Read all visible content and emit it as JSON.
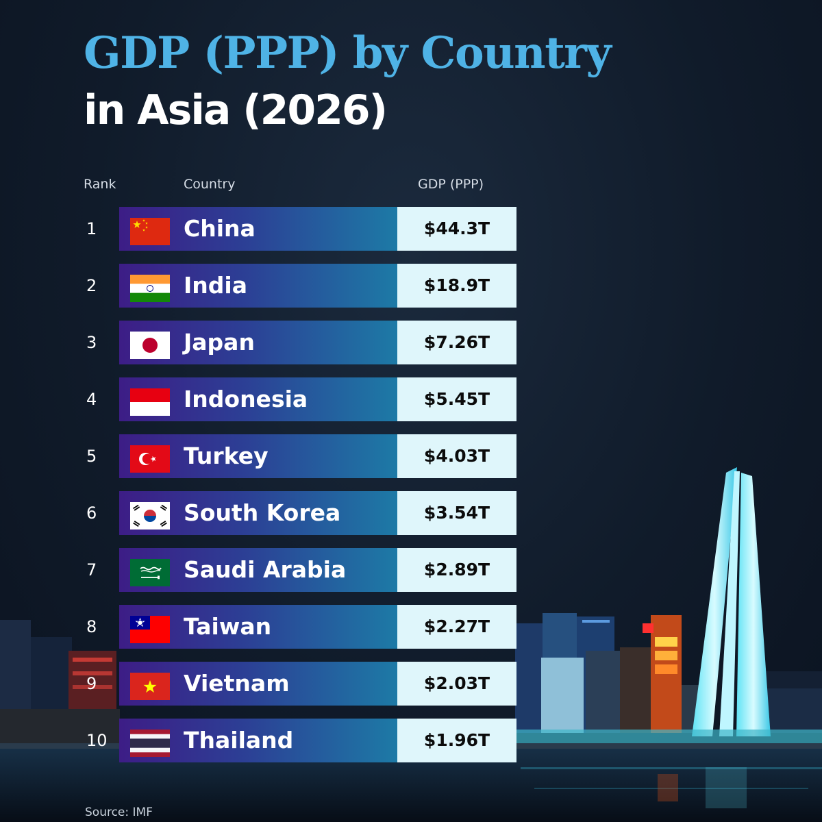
{
  "title_line1": "GDP (PPP) by Country",
  "title_line2": "in Asia (2026)",
  "headers": {
    "rank": "Rank",
    "country": "Country",
    "gdp": "GDP (PPP)"
  },
  "source": "Source: IMF",
  "colors": {
    "title_accent": "#4fb3e6",
    "bar_start": "#3d1d86",
    "bar_end": "#1d7aa6",
    "value_cell": "#dff6fb"
  },
  "chart_data": {
    "type": "table",
    "columns": [
      "Rank",
      "Country",
      "GDP (PPP)"
    ],
    "rows": [
      {
        "rank": "1",
        "country": "China",
        "value": "$44.3T",
        "value_trillions": 44.3,
        "flag": "china-flag-icon"
      },
      {
        "rank": "2",
        "country": "India",
        "value": "$18.9T",
        "value_trillions": 18.9,
        "flag": "india-flag-icon"
      },
      {
        "rank": "3",
        "country": "Japan",
        "value": "$7.26T",
        "value_trillions": 7.26,
        "flag": "japan-flag-icon"
      },
      {
        "rank": "4",
        "country": "Indonesia",
        "value": "$5.45T",
        "value_trillions": 5.45,
        "flag": "indonesia-flag-icon"
      },
      {
        "rank": "5",
        "country": "Turkey",
        "value": "$4.03T",
        "value_trillions": 4.03,
        "flag": "turkey-flag-icon"
      },
      {
        "rank": "6",
        "country": "South Korea",
        "value": "$3.54T",
        "value_trillions": 3.54,
        "flag": "south-korea-flag-icon"
      },
      {
        "rank": "7",
        "country": "Saudi Arabia",
        "value": "$2.89T",
        "value_trillions": 2.89,
        "flag": "saudi-arabia-flag-icon"
      },
      {
        "rank": "8",
        "country": "Taiwan",
        "value": "$2.27T",
        "value_trillions": 2.27,
        "flag": "taiwan-flag-icon"
      },
      {
        "rank": "9",
        "country": "Vietnam",
        "value": "$2.03T",
        "value_trillions": 2.03,
        "flag": "vietnam-flag-icon"
      },
      {
        "rank": "10",
        "country": "Thailand",
        "value": "$1.96T",
        "value_trillions": 1.96,
        "flag": "thailand-flag-icon"
      }
    ]
  }
}
